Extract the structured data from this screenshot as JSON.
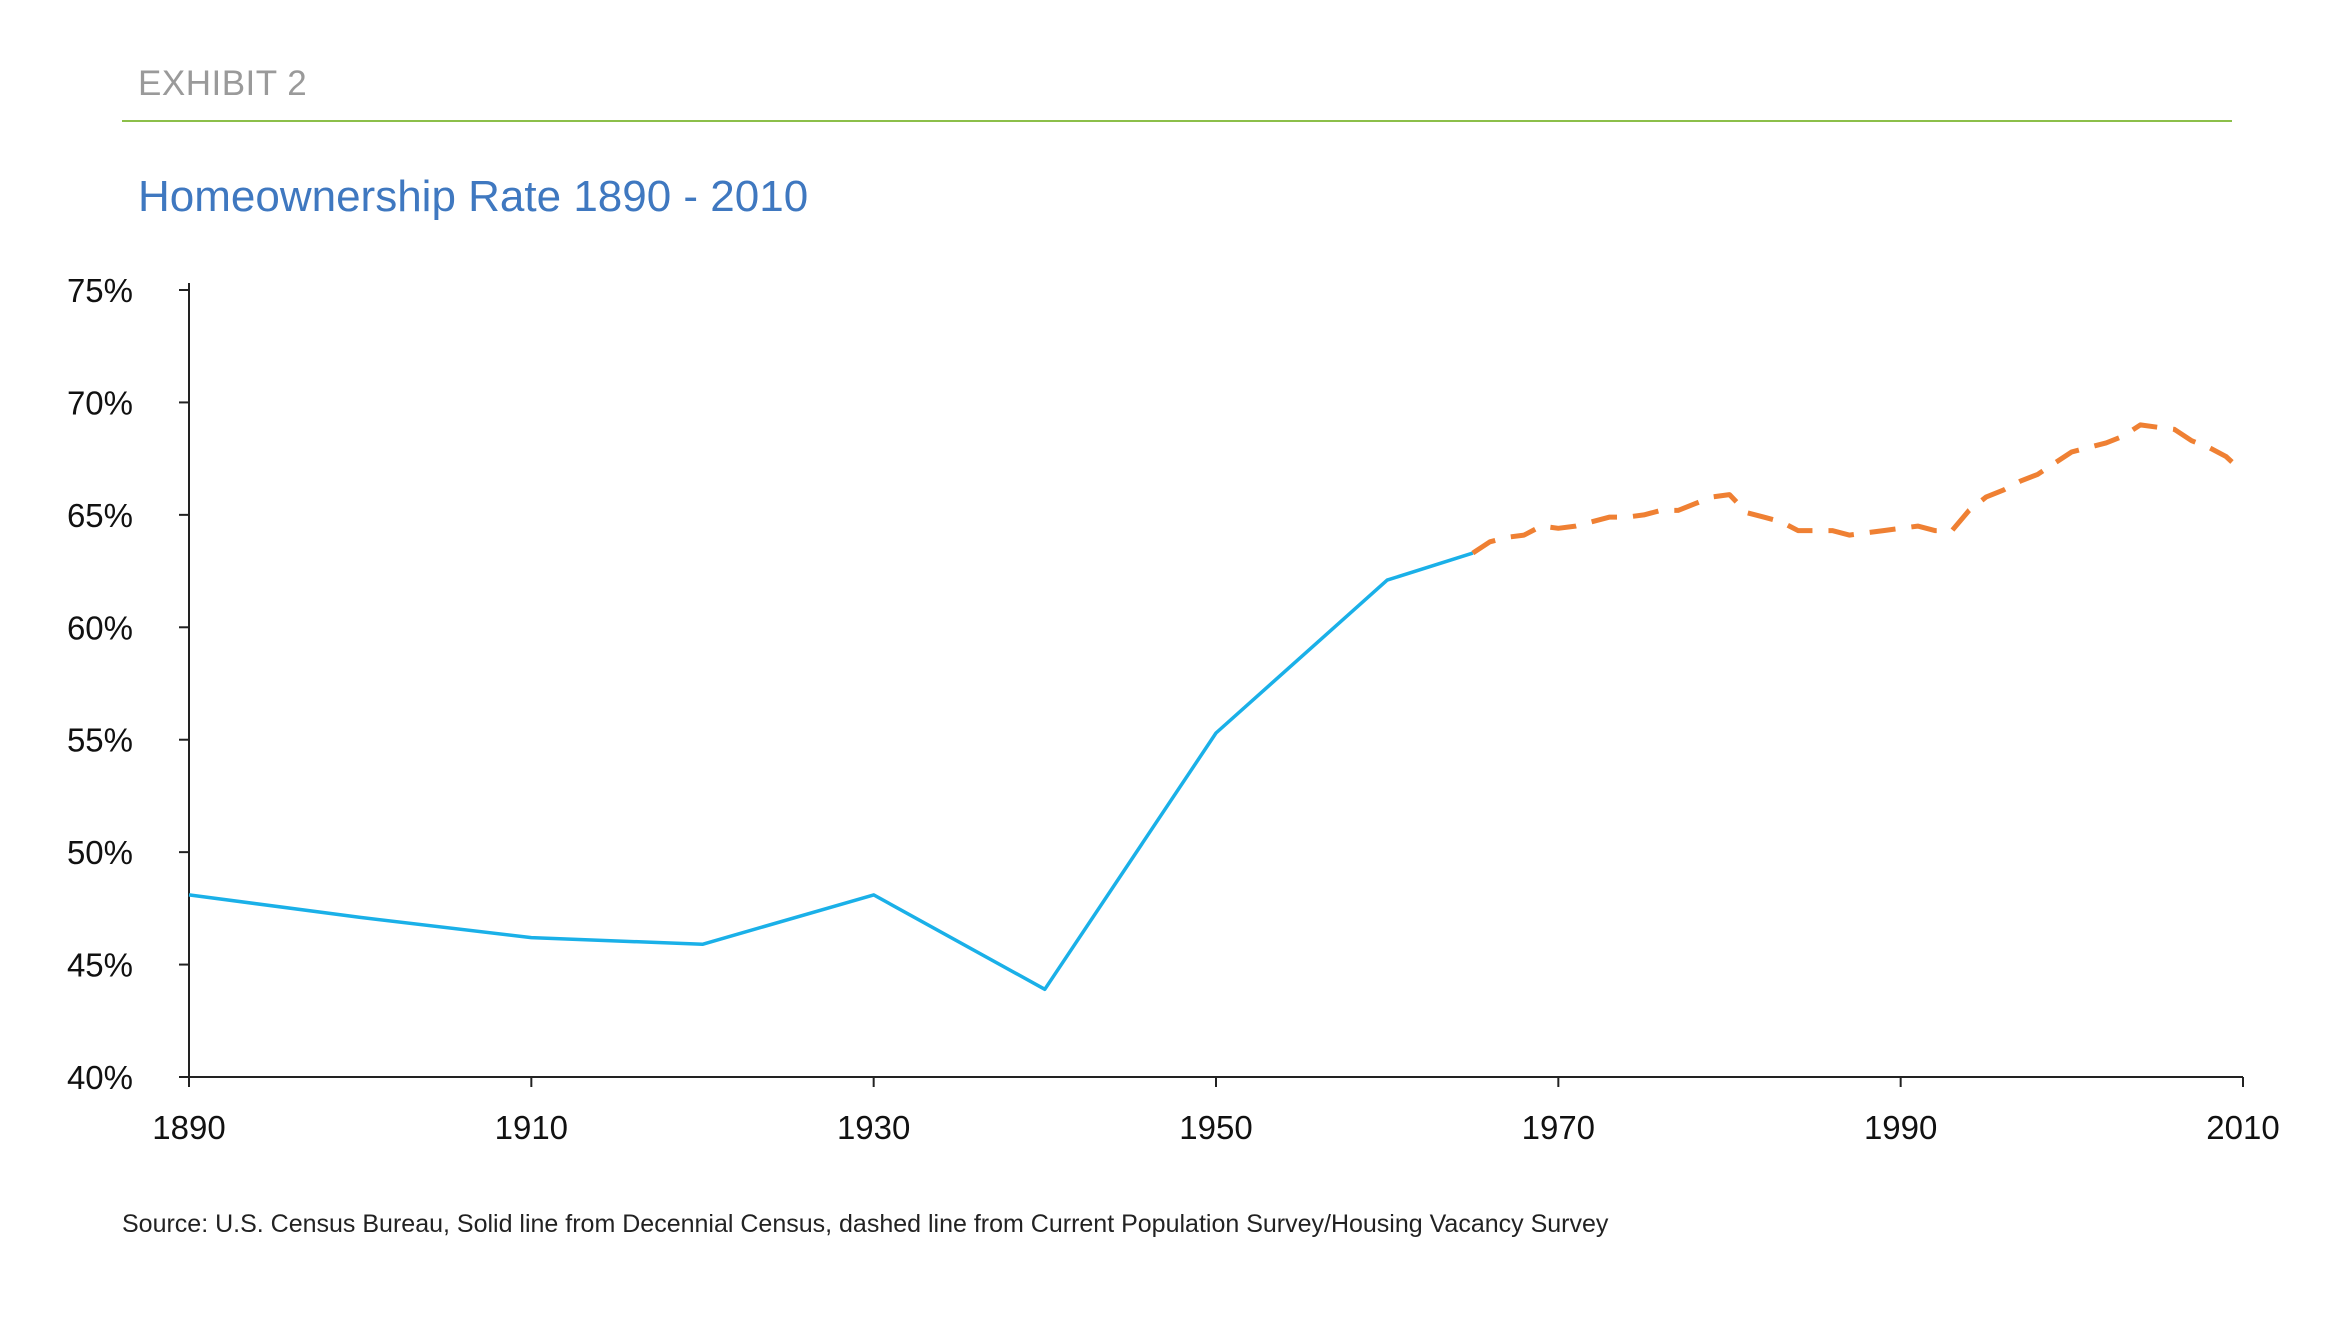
{
  "header": {
    "exhibit_label": "EXHIBIT 2",
    "title": "Homeownership Rate 1890 - 2010"
  },
  "footer": {
    "source": "Source: U.S. Census Bureau, Solid line from Decennial Census, dashed line from Current Population Survey/Housing Vacancy Survey"
  },
  "colors": {
    "exhibit": "#9a9a9a",
    "rule": "#8cbf4a",
    "title": "#3f78c0",
    "solid_series": "#1ab0e8",
    "dashed_series": "#ef8033",
    "axis": "#222222"
  },
  "chart_data": {
    "type": "line",
    "title": "Homeownership Rate 1890 - 2010",
    "xlabel": "",
    "ylabel": "",
    "xlim": [
      1890,
      2010
    ],
    "ylim": [
      0.4,
      0.75
    ],
    "x_ticks": [
      1890,
      1910,
      1930,
      1950,
      1970,
      1990,
      2010
    ],
    "x_tick_labels": [
      "1890",
      "1910",
      "1930",
      "1950",
      "1970",
      "1990",
      "2010"
    ],
    "y_ticks": [
      0.4,
      0.45,
      0.5,
      0.55,
      0.6,
      0.65,
      0.7,
      0.75
    ],
    "y_tick_labels": [
      "40%",
      "45%",
      "50%",
      "55%",
      "60%",
      "65%",
      "70%",
      "75%"
    ],
    "grid": false,
    "legend": "none",
    "series": [
      {
        "style": "solid",
        "color": "#1ab0e8",
        "x": [
          1890,
          1900,
          1910,
          1920,
          1930,
          1940,
          1950,
          1960,
          1965
        ],
        "y": [
          0.481,
          0.471,
          0.462,
          0.459,
          0.481,
          0.439,
          0.553,
          0.621,
          0.633
        ]
      },
      {
        "style": "dashed",
        "color": "#ef8033",
        "x": [
          1965,
          1966,
          1967,
          1968,
          1969,
          1970,
          1971,
          1972,
          1973,
          1974,
          1975,
          1976,
          1977,
          1978,
          1979,
          1980,
          1981,
          1982,
          1983,
          1984,
          1985,
          1986,
          1987,
          1988,
          1989,
          1990,
          1991,
          1992,
          1993,
          1994,
          1995,
          1996,
          1997,
          1998,
          1999,
          2000,
          2001,
          2002,
          2003,
          2004,
          2005,
          2006,
          2007,
          2008,
          2009,
          2010
        ],
        "y": [
          0.633,
          0.638,
          0.64,
          0.641,
          0.645,
          0.644,
          0.645,
          0.647,
          0.649,
          0.649,
          0.65,
          0.652,
          0.652,
          0.655,
          0.658,
          0.659,
          0.651,
          0.649,
          0.647,
          0.643,
          0.643,
          0.643,
          0.641,
          0.642,
          0.643,
          0.644,
          0.645,
          0.643,
          0.643,
          0.652,
          0.658,
          0.661,
          0.665,
          0.668,
          0.673,
          0.678,
          0.68,
          0.682,
          0.685,
          0.69,
          0.689,
          0.688,
          0.683,
          0.68,
          0.676,
          0.669
        ]
      }
    ]
  }
}
